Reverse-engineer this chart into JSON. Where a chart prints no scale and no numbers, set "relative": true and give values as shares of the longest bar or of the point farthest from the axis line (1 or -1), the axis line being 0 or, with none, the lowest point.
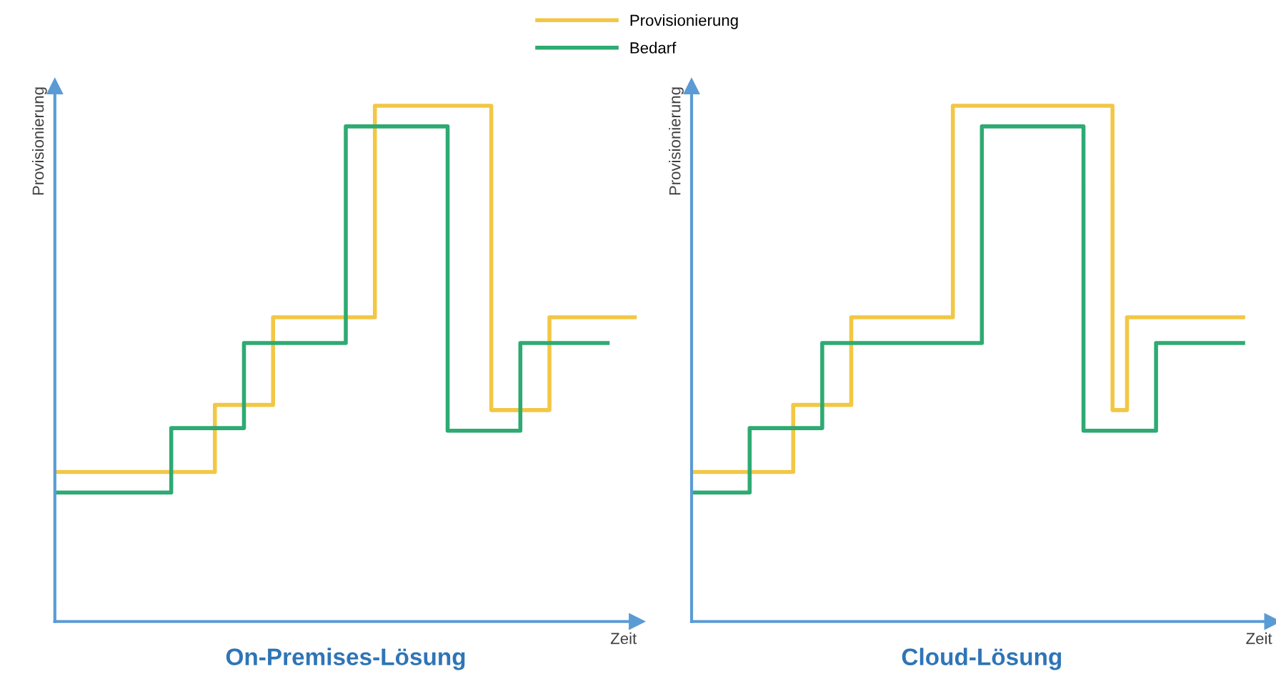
{
  "chart_data": [
    {
      "type": "step",
      "title": "On-Premises-Lösung",
      "xlabel": "Zeit",
      "ylabel": "Provisionierung",
      "relative": true,
      "legend": "top",
      "categories": [
        null,
        null,
        null,
        null,
        null,
        null,
        null,
        null,
        null,
        null,
        null,
        null,
        null,
        null,
        null,
        null,
        null,
        null,
        null,
        null,
        null,
        null,
        null,
        null,
        null,
        null,
        null,
        null,
        null,
        null,
        null,
        null,
        null,
        null,
        null,
        null,
        null,
        null,
        null,
        null,
        null
      ],
      "series": [
        {
          "name": "Provisionierung",
          "color": "#f2c744",
          "values": [
            0.29,
            0.29,
            0.29,
            0.29,
            0.29,
            0.29,
            0.29,
            0.29,
            0.29,
            0.29,
            0.29,
            0.42,
            0.42,
            0.42,
            0.42,
            0.59,
            0.59,
            0.59,
            0.59,
            0.59,
            0.59,
            0.59,
            1.0,
            1.0,
            1.0,
            1.0,
            1.0,
            1.0,
            1.0,
            1.0,
            0.41,
            0.41,
            0.41,
            0.41,
            0.59,
            0.59,
            0.59,
            0.59,
            0.59,
            0.59,
            0.59
          ]
        },
        {
          "name": "Bedarf",
          "color": "#2eaa72",
          "values": [
            0.25,
            0.25,
            0.25,
            0.25,
            0.25,
            0.25,
            0.25,
            0.25,
            0.375,
            0.375,
            0.375,
            0.375,
            0.375,
            0.54,
            0.54,
            0.54,
            0.54,
            0.54,
            0.54,
            0.54,
            0.96,
            0.96,
            0.96,
            0.96,
            0.96,
            0.96,
            0.96,
            0.37,
            0.37,
            0.37,
            0.37,
            0.37,
            0.54,
            0.54,
            0.54,
            0.54,
            0.54,
            0.54,
            0.54,
            null,
            null
          ]
        }
      ]
    },
    {
      "type": "step",
      "title": "Cloud-Lösung",
      "xlabel": "Zeit",
      "ylabel": "Provisionierung",
      "relative": true,
      "categories": [
        null,
        null,
        null,
        null,
        null,
        null,
        null,
        null,
        null,
        null,
        null,
        null,
        null,
        null,
        null,
        null,
        null,
        null,
        null,
        null,
        null,
        null,
        null,
        null,
        null,
        null,
        null,
        null,
        null,
        null,
        null,
        null,
        null,
        null,
        null,
        null,
        null,
        null,
        null,
        null,
        null
      ],
      "series": [
        {
          "color": "#f2c744",
          "values": [
            0.29,
            0.29,
            0.29,
            0.29,
            0.29,
            0.29,
            0.29,
            0.42,
            0.42,
            0.42,
            0.42,
            0.59,
            0.59,
            0.59,
            0.59,
            0.59,
            0.59,
            0.59,
            1.0,
            1.0,
            1.0,
            1.0,
            1.0,
            1.0,
            1.0,
            1.0,
            1.0,
            1.0,
            1.0,
            0.41,
            0.59,
            0.59,
            0.59,
            0.59,
            0.59,
            0.59,
            0.59,
            0.59,
            0.59,
            null,
            null
          ]
        },
        {
          "color": "#2eaa72",
          "values": [
            0.25,
            0.25,
            0.25,
            0.25,
            0.375,
            0.375,
            0.375,
            0.375,
            0.375,
            0.54,
            0.54,
            0.54,
            0.54,
            0.54,
            0.54,
            0.54,
            0.54,
            0.54,
            0.54,
            0.54,
            0.96,
            0.96,
            0.96,
            0.96,
            0.96,
            0.96,
            0.96,
            0.37,
            0.37,
            0.37,
            0.37,
            0.37,
            0.54,
            0.54,
            0.54,
            0.54,
            0.54,
            0.54,
            0.54,
            null,
            null
          ]
        }
      ]
    }
  ]
}
